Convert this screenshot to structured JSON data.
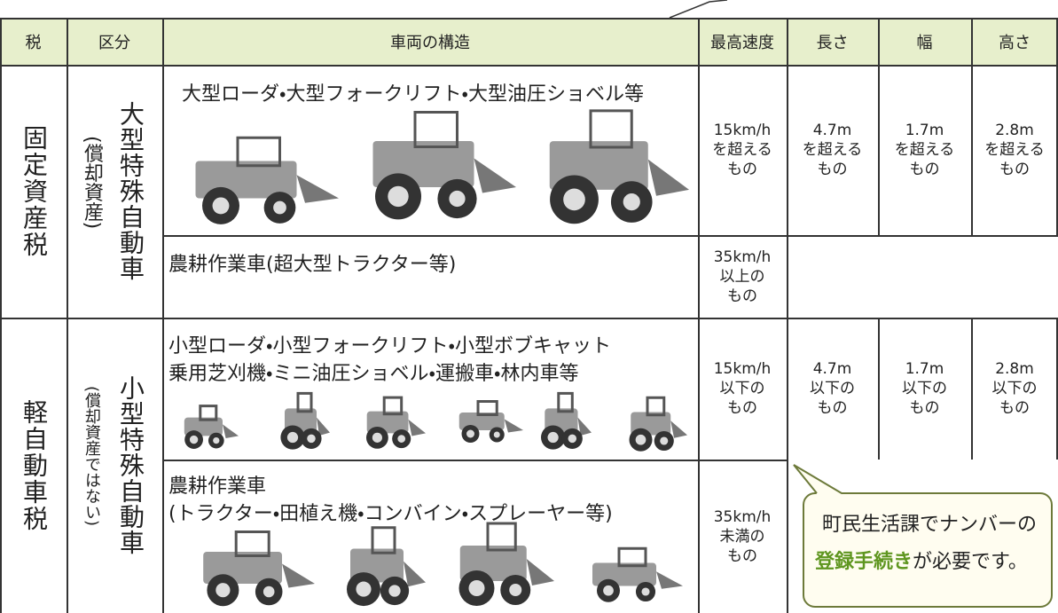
{
  "header": {
    "tax": "税",
    "category": "区分",
    "structure": "車両の構造",
    "max_speed": "最高速度",
    "length": "長さ",
    "width": "幅",
    "height": "高さ"
  },
  "groups": [
    {
      "tax": "固定資産税",
      "category": "大型特殊自動車",
      "category_note": "(償却資産)",
      "rows": [
        {
          "structure": [
            "大型ローダ・大型フォークリフト・大型油圧ショベル等"
          ],
          "max_speed": [
            "15km/h",
            "を超える",
            "もの"
          ],
          "length": [
            "4.7m",
            "を超える",
            "もの"
          ],
          "width": [
            "1.7m",
            "を超える",
            "もの"
          ],
          "height": [
            "2.8m",
            "を超える",
            "もの"
          ]
        },
        {
          "structure": [
            "農耕作業車(超大型トラクター等)"
          ],
          "max_speed": [
            "35km/h",
            "以上の",
            "もの"
          ]
        }
      ]
    },
    {
      "tax": "軽自動車税",
      "category": "小型特殊自動車",
      "category_note": "(償却資産ではない)",
      "rows": [
        {
          "structure": [
            "小型ローダ・小型フォークリフト・小型ボブキャット",
            "乗用芝刈機・ミニ油圧ショベル・運搬車・林内車等"
          ],
          "max_speed": [
            "15km/h",
            "以下の",
            "もの"
          ],
          "length": [
            "4.7m",
            "以下の",
            "もの"
          ],
          "width": [
            "1.7m",
            "以下の",
            "もの"
          ],
          "height": [
            "2.8m",
            "以下の",
            "もの"
          ]
        },
        {
          "structure": [
            "農耕作業車",
            "(トラクター・田植え機・コンバイン・スプレーヤー等)"
          ],
          "max_speed": [
            "35km/h",
            "未満の",
            "もの"
          ]
        }
      ]
    }
  ],
  "callout": {
    "line1": "町民生活課でナンバーの",
    "highlight": "登録手続き",
    "rest": "が必要です。"
  }
}
